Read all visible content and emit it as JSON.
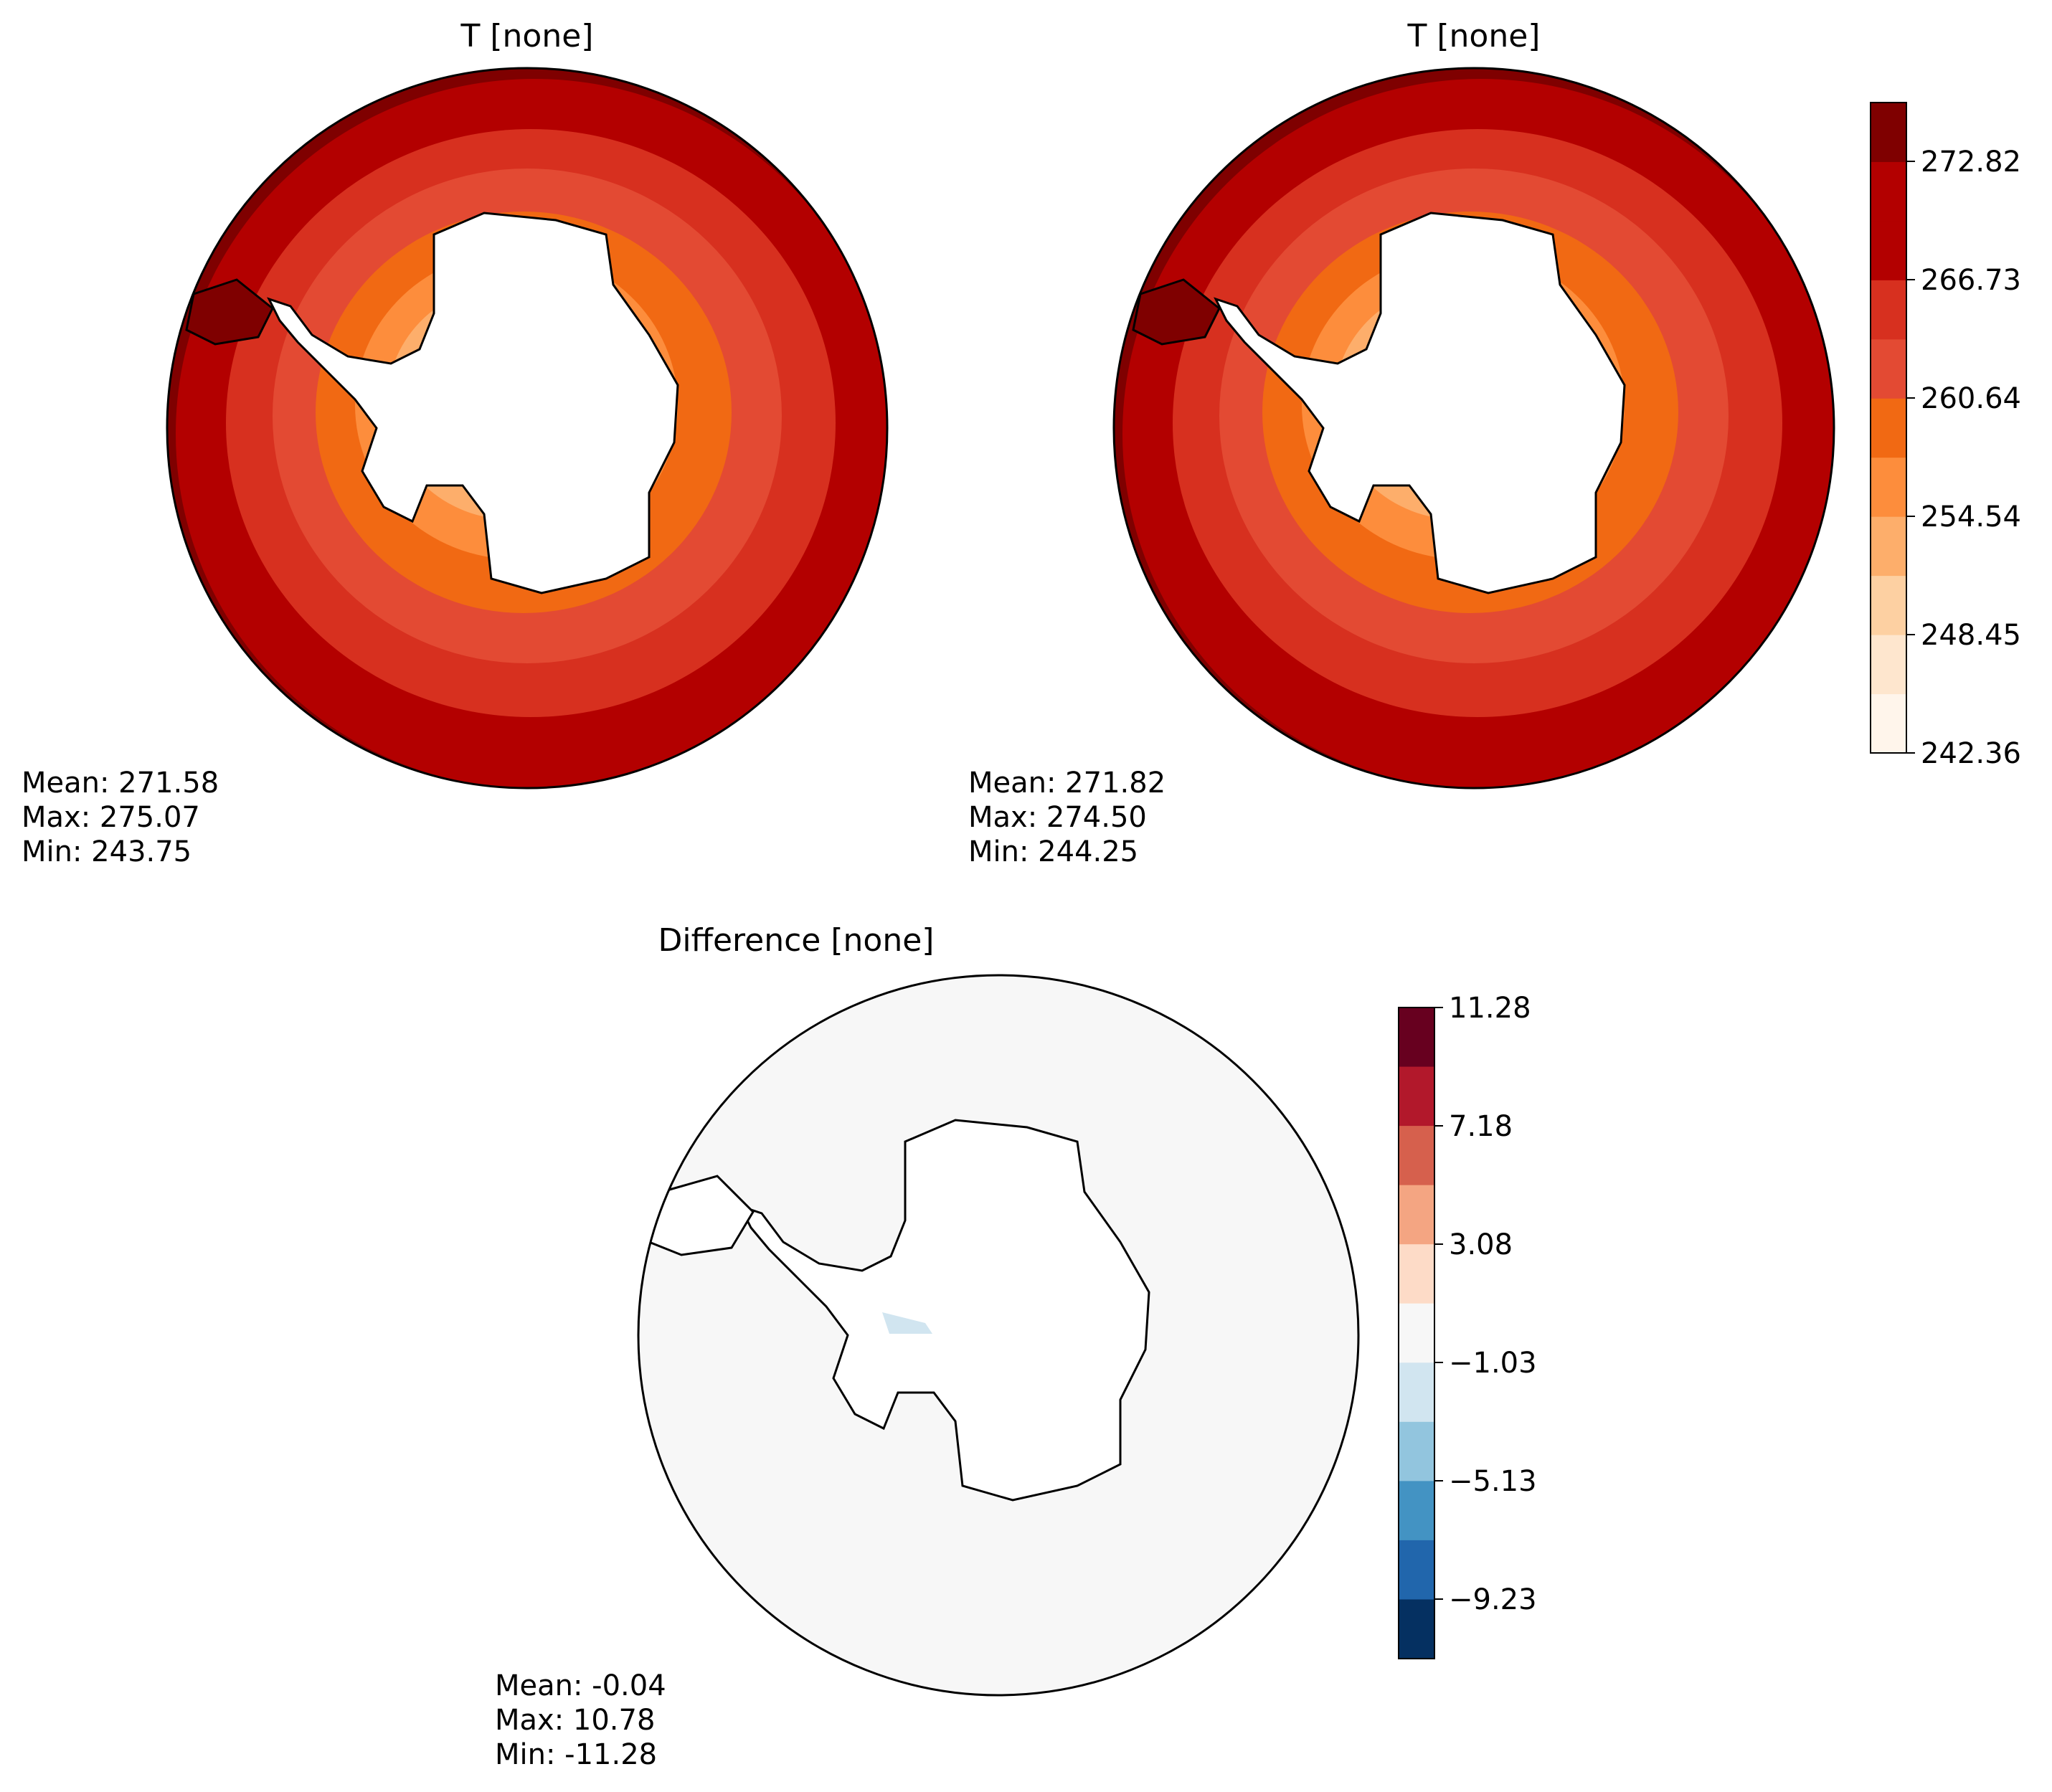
{
  "panels": [
    {
      "title": "T [none]",
      "stats": {
        "mean": "Mean: 271.58",
        "max": "Max: 275.07",
        "min": "Min: 243.75"
      }
    },
    {
      "title": "T [none]",
      "stats": {
        "mean": "Mean: 271.82",
        "max": "Max: 274.50",
        "min": "Min: 244.25"
      }
    },
    {
      "title": "Difference [none]",
      "stats": {
        "mean": "Mean: -0.04",
        "max": "Max: 10.78",
        "min": "Min: -11.28"
      }
    }
  ],
  "colorbar_t": {
    "ticks": [
      "242.36",
      "248.45",
      "254.54",
      "260.64",
      "266.73",
      "272.82"
    ],
    "colors": [
      "#fff5eb",
      "#fee6ce",
      "#fdd0a2",
      "#fdae6b",
      "#fd8d3c",
      "#f16913",
      "#e34a33",
      "#d7301f",
      "#b30000",
      "#b30000",
      "#7f0000"
    ]
  },
  "colorbar_diff": {
    "ticks": [
      "11.28",
      "7.18",
      "3.08",
      "−1.03",
      "−5.13",
      "−9.23"
    ],
    "colors": [
      "#67001f",
      "#b2182b",
      "#d6604d",
      "#f4a582",
      "#fddbc7",
      "#f7f7f7",
      "#d1e5f0",
      "#92c5de",
      "#4393c3",
      "#2166ac",
      "#053061"
    ]
  }
}
